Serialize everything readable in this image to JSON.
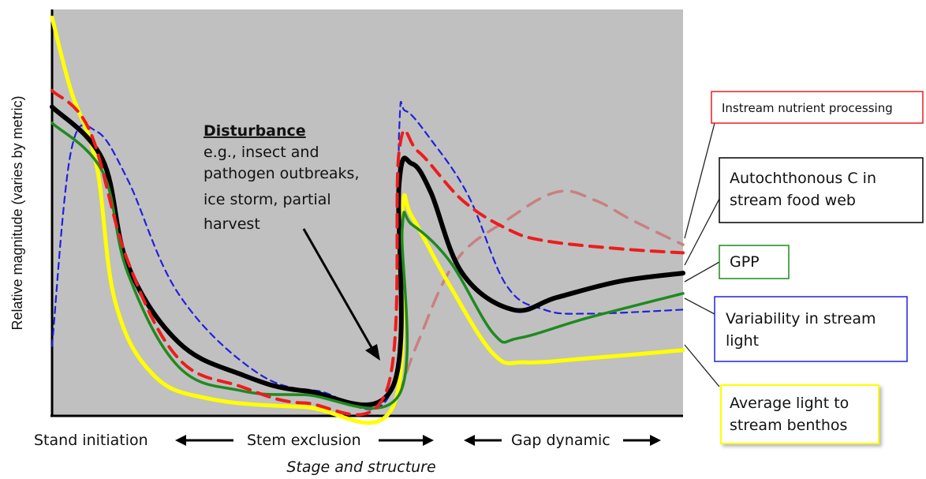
{
  "chart_data": {
    "type": "line",
    "xlabel": "Stage and structure",
    "ylabel": "Relative magnitude (varies by metric)",
    "stages": [
      "Stand initiation",
      "Stem exclusion",
      "Gap dynamic"
    ],
    "annotation": {
      "title": "Disturbance",
      "lines": [
        "e.g., insect and",
        "pathogen outbreaks,",
        "ice storm, partial",
        "harvest"
      ]
    },
    "series": [
      {
        "name": "Instream nutrient processing",
        "color": "#ee1c1c",
        "dash": true,
        "points": [
          [
            0,
            80
          ],
          [
            6,
            70
          ],
          [
            12,
            38
          ],
          [
            20,
            14
          ],
          [
            30,
            7
          ],
          [
            40,
            3
          ],
          [
            53,
            6
          ],
          [
            55,
            65
          ],
          [
            58,
            65
          ],
          [
            65,
            53
          ],
          [
            72,
            46
          ],
          [
            78,
            43
          ],
          [
            90,
            41
          ],
          [
            100,
            40
          ]
        ]
      },
      {
        "name": "Autochthonous C in stream food web",
        "color": "#000000",
        "dash": false,
        "points": [
          [
            0,
            76
          ],
          [
            8,
            63
          ],
          [
            12,
            37
          ],
          [
            20,
            18
          ],
          [
            30,
            10
          ],
          [
            40,
            6
          ],
          [
            54,
            7
          ],
          [
            55,
            57
          ],
          [
            57,
            62
          ],
          [
            60,
            55
          ],
          [
            65,
            35
          ],
          [
            73,
            26
          ],
          [
            80,
            29
          ],
          [
            90,
            33
          ],
          [
            100,
            35
          ]
        ]
      },
      {
        "name": "GPP",
        "color": "#1f8a1f",
        "dash": false,
        "points": [
          [
            0,
            72
          ],
          [
            8,
            60
          ],
          [
            12,
            35
          ],
          [
            20,
            12
          ],
          [
            30,
            6
          ],
          [
            40,
            5
          ],
          [
            55,
            5
          ],
          [
            55.5,
            46
          ],
          [
            57,
            47
          ],
          [
            63,
            38
          ],
          [
            70,
            20
          ],
          [
            74,
            19
          ],
          [
            85,
            24
          ],
          [
            100,
            30
          ]
        ]
      },
      {
        "name": "Variability in stream light",
        "color": "#2020e0",
        "dash": true,
        "points": [
          [
            0,
            17
          ],
          [
            3,
            65
          ],
          [
            7,
            70
          ],
          [
            12,
            58
          ],
          [
            20,
            30
          ],
          [
            32,
            11
          ],
          [
            42,
            6
          ],
          [
            54,
            7
          ],
          [
            55,
            70
          ],
          [
            56,
            75
          ],
          [
            60,
            68
          ],
          [
            66,
            54
          ],
          [
            72,
            32
          ],
          [
            78,
            26
          ],
          [
            85,
            25
          ],
          [
            100,
            26
          ]
        ]
      },
      {
        "name": "Average light to stream benthos",
        "color": "#ffff00",
        "dash": false,
        "points": [
          [
            0,
            98
          ],
          [
            3,
            80
          ],
          [
            7,
            62
          ],
          [
            10,
            28
          ],
          [
            16,
            10
          ],
          [
            25,
            4
          ],
          [
            40,
            2
          ],
          [
            54,
            2
          ],
          [
            55.5,
            50
          ],
          [
            57,
            49
          ],
          [
            63,
            32
          ],
          [
            70,
            15
          ],
          [
            75,
            13
          ],
          [
            85,
            14
          ],
          [
            100,
            16
          ]
        ]
      },
      {
        "name": "",
        "color": "#c98080",
        "dash": true,
        "points": [
          [
            55,
            5
          ],
          [
            58,
            18
          ],
          [
            64,
            38
          ],
          [
            72,
            48
          ],
          [
            80,
            55
          ],
          [
            86,
            53
          ],
          [
            92,
            48
          ],
          [
            100,
            42
          ]
        ]
      }
    ]
  },
  "legend_boxes": [
    {
      "label_lines": [
        "Instream nutrient processing"
      ],
      "border": "#ee1c1c"
    },
    {
      "label_lines": [
        "Autochthonous C in",
        "stream food web"
      ],
      "border": "#000000"
    },
    {
      "label_lines": [
        "GPP"
      ],
      "border": "#1f8a1f"
    },
    {
      "label_lines": [
        "Variability in stream",
        "light"
      ],
      "border": "#2020e0"
    },
    {
      "label_lines": [
        "Average light to",
        "stream benthos"
      ],
      "border": "#ffff00"
    }
  ]
}
